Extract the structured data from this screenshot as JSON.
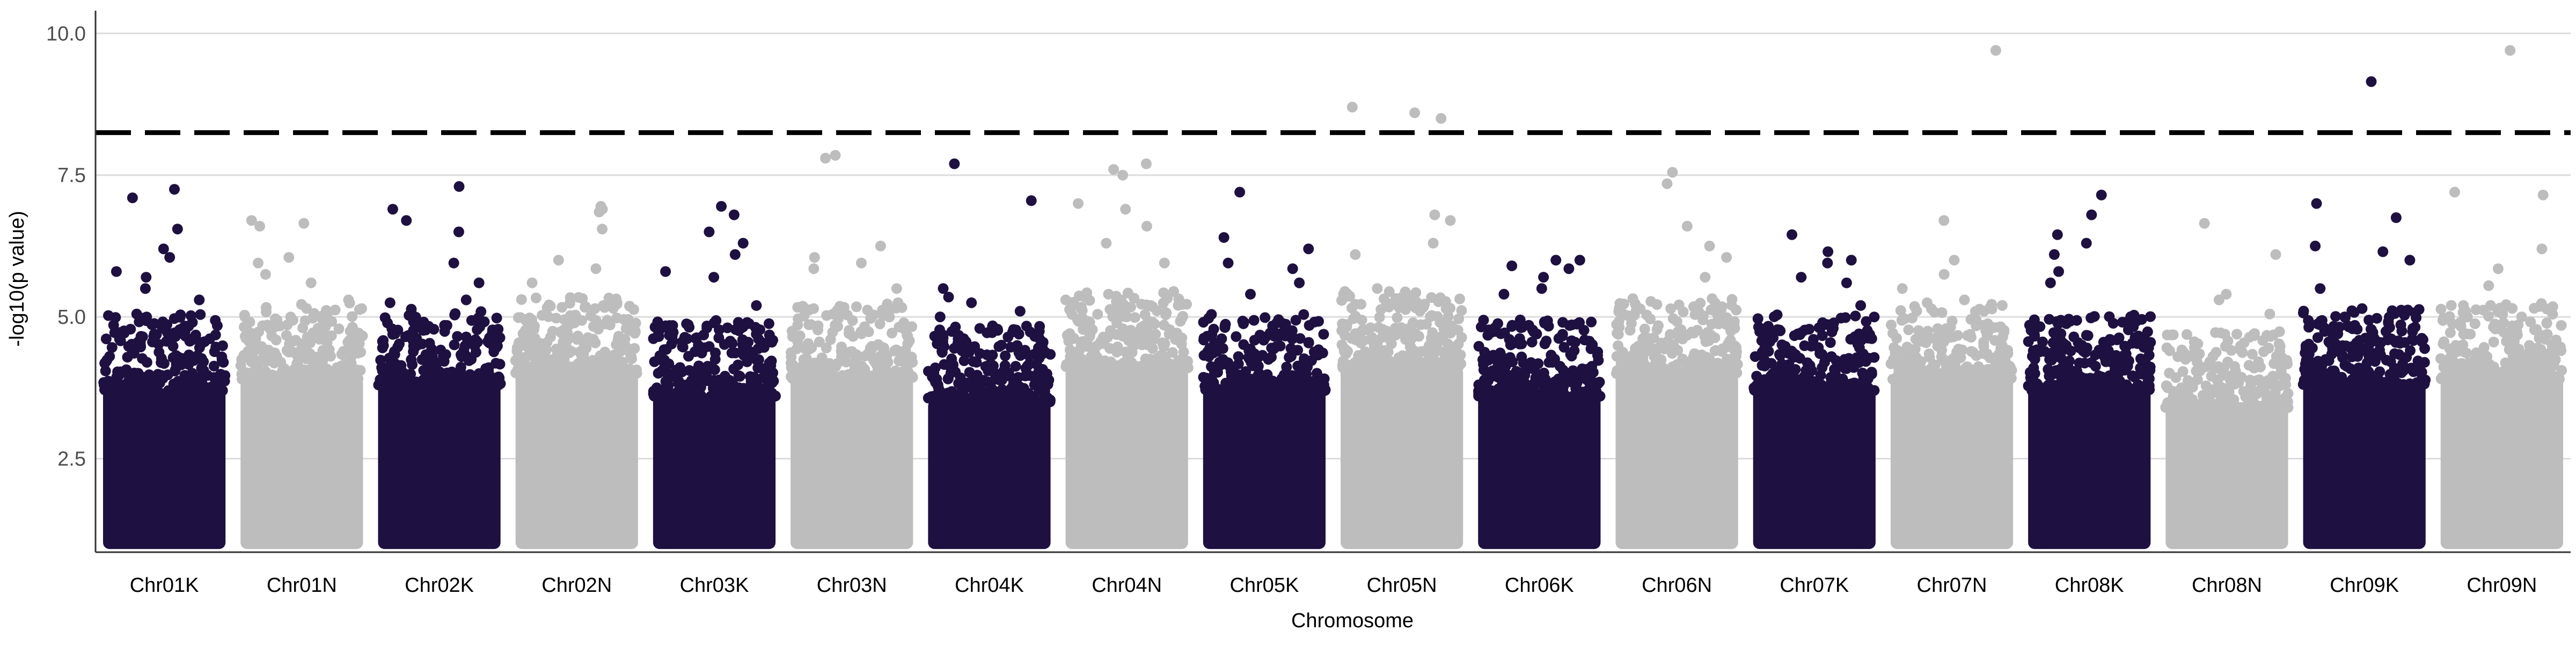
{
  "chart_data": {
    "type": "scatter",
    "title": "",
    "xlabel": "Chromosome",
    "ylabel": "-log10(p value)",
    "ylim": [
      0.85,
      10.4
    ],
    "y_ticks": [
      "2.5",
      "5.0",
      "7.5",
      "10.0"
    ],
    "y_tick_values": [
      2.5,
      5.0,
      7.5,
      10.0
    ],
    "grid": "horizontal",
    "legend": "none",
    "threshold": {
      "value": 8.25,
      "style": "dashed",
      "color": "#000000"
    },
    "colors": {
      "dark": "#1e1040",
      "light": "#bdbdbd",
      "grid": "#dcdcdc"
    },
    "categories": [
      "Chr01K",
      "Chr01N",
      "Chr02K",
      "Chr02N",
      "Chr03K",
      "Chr03N",
      "Chr04K",
      "Chr04N",
      "Chr05K",
      "Chr05N",
      "Chr06K",
      "Chr06N",
      "Chr07K",
      "Chr07N",
      "Chr08K",
      "Chr08N",
      "Chr09K",
      "Chr09N"
    ],
    "series": [
      {
        "chromosome": "Chr01K",
        "color": "dark",
        "base_max": 3.7,
        "notable_points": [
          7.25,
          7.1,
          6.55,
          6.2,
          6.05,
          5.8,
          5.7,
          5.5,
          5.3,
          5.05
        ]
      },
      {
        "chromosome": "Chr01N",
        "color": "light",
        "base_max": 3.9,
        "notable_points": [
          6.7,
          6.65,
          6.6,
          6.05,
          5.95,
          5.75,
          5.6,
          5.3
        ]
      },
      {
        "chromosome": "Chr02K",
        "color": "dark",
        "base_max": 3.8,
        "notable_points": [
          7.3,
          6.9,
          6.7,
          6.5,
          5.95,
          5.6,
          5.3,
          5.25
        ]
      },
      {
        "chromosome": "Chr02N",
        "color": "light",
        "base_max": 4.0,
        "notable_points": [
          6.95,
          6.9,
          6.85,
          6.55,
          6.0,
          5.85,
          5.6
        ]
      },
      {
        "chromosome": "Chr03K",
        "color": "dark",
        "base_max": 3.6,
        "notable_points": [
          6.95,
          6.8,
          6.5,
          6.3,
          6.1,
          5.8,
          5.7,
          5.2
        ]
      },
      {
        "chromosome": "Chr03N",
        "color": "light",
        "base_max": 3.9,
        "notable_points": [
          7.85,
          7.8,
          6.25,
          6.05,
          5.95,
          5.85,
          5.5
        ]
      },
      {
        "chromosome": "Chr04K",
        "color": "dark",
        "base_max": 3.5,
        "notable_points": [
          7.7,
          7.05,
          5.5,
          5.35,
          5.25,
          5.1,
          5.0
        ]
      },
      {
        "chromosome": "Chr04N",
        "color": "light",
        "base_max": 4.1,
        "notable_points": [
          7.7,
          7.6,
          7.5,
          7.0,
          6.9,
          6.6,
          6.3,
          5.95
        ]
      },
      {
        "chromosome": "Chr05K",
        "color": "dark",
        "base_max": 3.7,
        "notable_points": [
          7.2,
          6.4,
          6.2,
          5.95,
          5.85,
          5.6,
          5.4
        ]
      },
      {
        "chromosome": "Chr05N",
        "color": "light",
        "base_max": 4.1,
        "notable_points": [
          8.7,
          8.6,
          8.5,
          6.8,
          6.7,
          6.3,
          6.1,
          5.5
        ]
      },
      {
        "chromosome": "Chr06K",
        "color": "dark",
        "base_max": 3.6,
        "notable_points": [
          6.0,
          6.0,
          5.9,
          5.85,
          5.7,
          5.5,
          5.4
        ]
      },
      {
        "chromosome": "Chr06N",
        "color": "light",
        "base_max": 4.0,
        "notable_points": [
          7.55,
          7.35,
          6.6,
          6.25,
          6.05,
          5.7
        ]
      },
      {
        "chromosome": "Chr07K",
        "color": "dark",
        "base_max": 3.7,
        "notable_points": [
          6.45,
          6.15,
          6.0,
          5.95,
          5.7,
          5.6,
          5.2
        ]
      },
      {
        "chromosome": "Chr07N",
        "color": "light",
        "base_max": 3.9,
        "notable_points": [
          9.7,
          6.7,
          6.0,
          5.75,
          5.5,
          5.3
        ]
      },
      {
        "chromosome": "Chr08K",
        "color": "dark",
        "base_max": 3.7,
        "notable_points": [
          7.15,
          6.8,
          6.45,
          6.3,
          6.1,
          5.8,
          5.6
        ]
      },
      {
        "chromosome": "Chr08N",
        "color": "light",
        "base_max": 3.4,
        "notable_points": [
          6.65,
          6.1,
          5.4,
          5.3,
          5.05
        ]
      },
      {
        "chromosome": "Chr09K",
        "color": "dark",
        "base_max": 3.8,
        "notable_points": [
          9.15,
          7.0,
          6.75,
          6.25,
          6.15,
          6.0,
          5.5
        ]
      },
      {
        "chromosome": "Chr09N",
        "color": "light",
        "base_max": 3.9,
        "notable_points": [
          9.7,
          7.2,
          7.15,
          6.2,
          5.85,
          5.55,
          5.2
        ]
      }
    ]
  }
}
